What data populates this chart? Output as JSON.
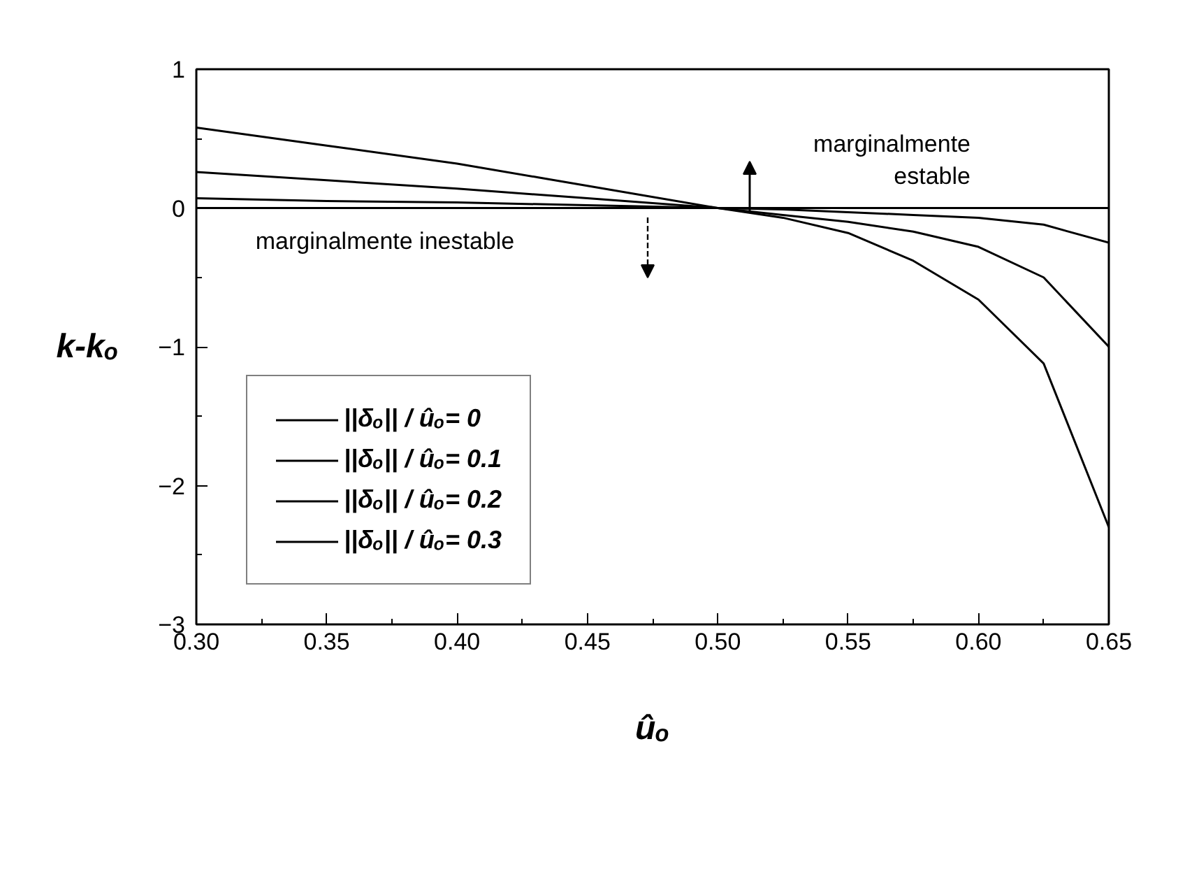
{
  "chart_data": {
    "type": "line",
    "xlabel": "ûₒ",
    "ylabel": "k-kₒ",
    "x": [
      0.3,
      0.35,
      0.4,
      0.45,
      0.5,
      0.525,
      0.55,
      0.575,
      0.6,
      0.625,
      0.65
    ],
    "series": [
      {
        "name": "||δₒ|| / ûₒ= 0",
        "color": "#000000",
        "values": [
          0,
          0,
          0,
          0,
          0,
          0,
          0,
          0,
          0,
          0,
          0
        ]
      },
      {
        "name": "||δₒ|| / ûₒ= 0.1",
        "color": "#000000",
        "values": [
          0.07,
          0.05,
          0.04,
          0.02,
          0,
          -0.01,
          -0.03,
          -0.05,
          -0.07,
          -0.12,
          -0.25
        ]
      },
      {
        "name": "||δₒ|| / ûₒ= 0.2",
        "color": "#000000",
        "values": [
          0.26,
          0.2,
          0.14,
          0.07,
          0,
          -0.05,
          -0.1,
          -0.17,
          -0.28,
          -0.5,
          -1.0
        ]
      },
      {
        "name": "||δₒ|| / ûₒ= 0.3",
        "color": "#000000",
        "values": [
          0.58,
          0.45,
          0.32,
          0.16,
          0,
          -0.07,
          -0.18,
          -0.38,
          -0.66,
          -1.12,
          -2.3
        ]
      }
    ],
    "xlim": [
      0.3,
      0.65
    ],
    "ylim": [
      -3,
      1
    ],
    "xticks": [
      {
        "value": 0.3,
        "label": "0.30"
      },
      0.35,
      {
        "value": 0.4,
        "label": "0.40"
      },
      0.45,
      {
        "value": 0.5,
        "label": "0.50"
      },
      0.55,
      {
        "value": 0.6,
        "label": "0.60"
      },
      0.65
    ],
    "yticks": [
      -3,
      -2,
      -1,
      0,
      1
    ],
    "annotations": [
      "marginalmente estable",
      "marginalmente inestable"
    ],
    "legend": "left",
    "grid": false,
    "marker": "none",
    "line_style": "solid"
  }
}
